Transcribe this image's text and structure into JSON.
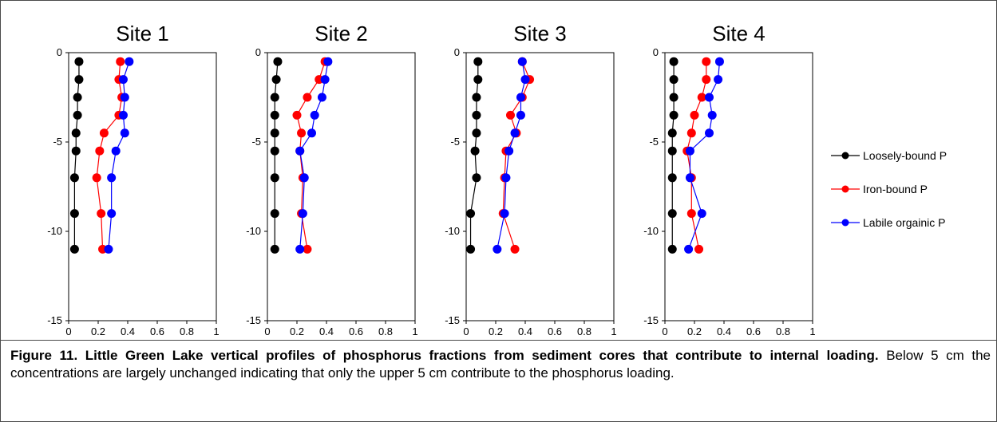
{
  "figure": {
    "caption_title": "Figure 11. Little Green Lake vertical profiles of phosphorus fractions from sediment cores that contribute to internal loading.",
    "caption_body": "  Below 5 cm the concentrations are largely unchanged indicating that only the upper 5 cm contribute to the phosphorus loading."
  },
  "legend": [
    {
      "name": "Loosely-bound P",
      "color": "#000000"
    },
    {
      "name": "Iron-bound P",
      "color": "#ff0000"
    },
    {
      "name": "Labile orgainic P",
      "color": "#0000ff"
    }
  ],
  "chart_data": [
    {
      "type": "line",
      "title": "Site 1",
      "xlim": [
        0,
        1
      ],
      "ylim": [
        -15,
        0
      ],
      "x_ticks": [
        "0",
        "0.2",
        "0.4",
        "0.6",
        "0.8",
        "1"
      ],
      "y_ticks": [
        "0",
        "-5",
        "-10",
        "-15"
      ],
      "series": [
        {
          "name": "Loosely-bound P",
          "points": [
            [
              0.07,
              -0.5
            ],
            [
              0.07,
              -1.5
            ],
            [
              0.06,
              -2.5
            ],
            [
              0.06,
              -3.5
            ],
            [
              0.05,
              -4.5
            ],
            [
              0.05,
              -5.5
            ],
            [
              0.04,
              -7
            ],
            [
              0.04,
              -9
            ],
            [
              0.04,
              -11
            ]
          ]
        },
        {
          "name": "Iron-bound P",
          "points": [
            [
              0.35,
              -0.5
            ],
            [
              0.34,
              -1.5
            ],
            [
              0.36,
              -2.5
            ],
            [
              0.34,
              -3.5
            ],
            [
              0.24,
              -4.5
            ],
            [
              0.21,
              -5.5
            ],
            [
              0.19,
              -7
            ],
            [
              0.22,
              -9
            ],
            [
              0.23,
              -11
            ]
          ]
        },
        {
          "name": "Labile orgainic P",
          "points": [
            [
              0.41,
              -0.5
            ],
            [
              0.37,
              -1.5
            ],
            [
              0.38,
              -2.5
            ],
            [
              0.37,
              -3.5
            ],
            [
              0.38,
              -4.5
            ],
            [
              0.32,
              -5.5
            ],
            [
              0.29,
              -7
            ],
            [
              0.29,
              -9
            ],
            [
              0.27,
              -11
            ]
          ]
        }
      ]
    },
    {
      "type": "line",
      "title": "Site 2",
      "xlim": [
        0,
        1
      ],
      "ylim": [
        -15,
        0
      ],
      "x_ticks": [
        "0",
        "0.2",
        "0.4",
        "0.6",
        "0.8",
        "1"
      ],
      "y_ticks": [
        "0",
        "-5",
        "-10",
        "-15"
      ],
      "series": [
        {
          "name": "Loosely-bound P",
          "points": [
            [
              0.07,
              -0.5
            ],
            [
              0.06,
              -1.5
            ],
            [
              0.05,
              -2.5
            ],
            [
              0.05,
              -3.5
            ],
            [
              0.05,
              -4.5
            ],
            [
              0.05,
              -5.5
            ],
            [
              0.05,
              -7
            ],
            [
              0.05,
              -9
            ],
            [
              0.05,
              -11
            ]
          ]
        },
        {
          "name": "Iron-bound P",
          "points": [
            [
              0.39,
              -0.5
            ],
            [
              0.35,
              -1.5
            ],
            [
              0.27,
              -2.5
            ],
            [
              0.2,
              -3.5
            ],
            [
              0.23,
              -4.5
            ],
            [
              0.22,
              -5.5
            ],
            [
              0.24,
              -7
            ],
            [
              0.23,
              -9
            ],
            [
              0.27,
              -11
            ]
          ]
        },
        {
          "name": "Labile orgainic P",
          "points": [
            [
              0.41,
              -0.5
            ],
            [
              0.39,
              -1.5
            ],
            [
              0.37,
              -2.5
            ],
            [
              0.32,
              -3.5
            ],
            [
              0.3,
              -4.5
            ],
            [
              0.22,
              -5.5
            ],
            [
              0.25,
              -7
            ],
            [
              0.24,
              -9
            ],
            [
              0.22,
              -11
            ]
          ]
        }
      ]
    },
    {
      "type": "line",
      "title": "Site 3",
      "xlim": [
        0,
        1
      ],
      "ylim": [
        -15,
        0
      ],
      "x_ticks": [
        "0",
        "0.2",
        "0.4",
        "0.6",
        "0.8",
        "1"
      ],
      "y_ticks": [
        "0",
        "-5",
        "-10",
        "-15"
      ],
      "series": [
        {
          "name": "Loosely-bound P",
          "points": [
            [
              0.08,
              -0.5
            ],
            [
              0.08,
              -1.5
            ],
            [
              0.07,
              -2.5
            ],
            [
              0.07,
              -3.5
            ],
            [
              0.07,
              -4.5
            ],
            [
              0.06,
              -5.5
            ],
            [
              0.07,
              -7
            ],
            [
              0.03,
              -9
            ],
            [
              0.03,
              -11
            ]
          ]
        },
        {
          "name": "Iron-bound P",
          "points": [
            [
              0.38,
              -0.5
            ],
            [
              0.43,
              -1.5
            ],
            [
              0.38,
              -2.5
            ],
            [
              0.3,
              -3.5
            ],
            [
              0.34,
              -4.5
            ],
            [
              0.27,
              -5.5
            ],
            [
              0.26,
              -7
            ],
            [
              0.25,
              -9
            ],
            [
              0.33,
              -11
            ]
          ]
        },
        {
          "name": "Labile orgainic P",
          "points": [
            [
              0.38,
              -0.5
            ],
            [
              0.4,
              -1.5
            ],
            [
              0.37,
              -2.5
            ],
            [
              0.37,
              -3.5
            ],
            [
              0.33,
              -4.5
            ],
            [
              0.29,
              -5.5
            ],
            [
              0.27,
              -7
            ],
            [
              0.26,
              -9
            ],
            [
              0.21,
              -11
            ]
          ]
        }
      ]
    },
    {
      "type": "line",
      "title": "Site 4",
      "xlim": [
        0,
        1
      ],
      "ylim": [
        -15,
        0
      ],
      "x_ticks": [
        "0",
        "0.2",
        "0.4",
        "0.6",
        "0.8",
        "1"
      ],
      "y_ticks": [
        "0",
        "-5",
        "-10",
        "-15"
      ],
      "series": [
        {
          "name": "Loosely-bound P",
          "points": [
            [
              0.06,
              -0.5
            ],
            [
              0.06,
              -1.5
            ],
            [
              0.06,
              -2.5
            ],
            [
              0.06,
              -3.5
            ],
            [
              0.05,
              -4.5
            ],
            [
              0.05,
              -5.5
            ],
            [
              0.05,
              -7
            ],
            [
              0.05,
              -9
            ],
            [
              0.05,
              -11
            ]
          ]
        },
        {
          "name": "Iron-bound P",
          "points": [
            [
              0.28,
              -0.5
            ],
            [
              0.28,
              -1.5
            ],
            [
              0.25,
              -2.5
            ],
            [
              0.2,
              -3.5
            ],
            [
              0.18,
              -4.5
            ],
            [
              0.15,
              -5.5
            ],
            [
              0.18,
              -7
            ],
            [
              0.18,
              -9
            ],
            [
              0.23,
              -11
            ]
          ]
        },
        {
          "name": "Labile orgainic P",
          "points": [
            [
              0.37,
              -0.5
            ],
            [
              0.36,
              -1.5
            ],
            [
              0.3,
              -2.5
            ],
            [
              0.32,
              -3.5
            ],
            [
              0.3,
              -4.5
            ],
            [
              0.17,
              -5.5
            ],
            [
              0.17,
              -7
            ],
            [
              0.25,
              -9
            ],
            [
              0.16,
              -11
            ]
          ]
        }
      ]
    }
  ]
}
